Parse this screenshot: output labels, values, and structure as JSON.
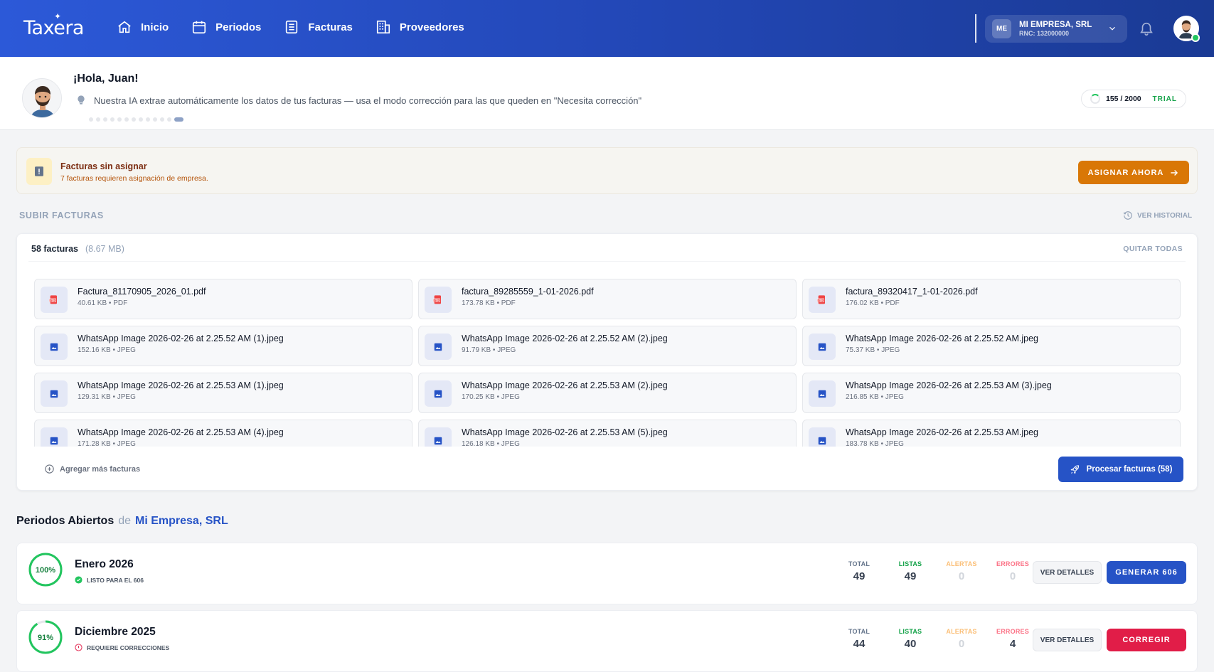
{
  "app": {
    "logo": "Taxera"
  },
  "nav": [
    {
      "label": "Inicio",
      "icon": "home-icon"
    },
    {
      "label": "Periodos",
      "icon": "calendar-icon"
    },
    {
      "label": "Facturas",
      "icon": "document-icon"
    },
    {
      "label": "Proveedores",
      "icon": "building-icon"
    }
  ],
  "company": {
    "initials": "ME",
    "name": "MI EMPRESA, SRL",
    "rnc": "RNC: 132000000"
  },
  "welcome": {
    "greeting": "¡Hola, Juan!",
    "tip": "Nuestra IA extrae automáticamente los datos de tus facturas — usa el modo corrección para las que queden en \"Necesita corrección\""
  },
  "usage": {
    "count": "155 / 2000",
    "plan": "TRIAL",
    "fraction": 0.0775
  },
  "alert": {
    "title": "Facturas sin asignar",
    "subtitle": "7 facturas requieren asignación de empresa.",
    "button": "ASIGNAR AHORA"
  },
  "upload_section": {
    "title": "SUBIR FACTURAS",
    "history": "VER HISTORIAL"
  },
  "upload": {
    "count": "58 facturas",
    "size": "(8.67 MB)",
    "clear": "QUITAR TODAS",
    "add_more": "Agregar más facturas",
    "process": "Procesar facturas (58)",
    "files": [
      {
        "name": "Factura_81170905_2026_01.pdf",
        "meta": "40.61 KB • PDF",
        "type": "pdf"
      },
      {
        "name": "factura_89285559_1-01-2026.pdf",
        "meta": "173.78 KB • PDF",
        "type": "pdf"
      },
      {
        "name": "factura_89320417_1-01-2026.pdf",
        "meta": "176.02 KB • PDF",
        "type": "pdf"
      },
      {
        "name": "WhatsApp Image 2026-02-26 at 2.25.52 AM (1).jpeg",
        "meta": "152.16 KB • JPEG",
        "type": "image"
      },
      {
        "name": "WhatsApp Image 2026-02-26 at 2.25.52 AM (2).jpeg",
        "meta": "91.79 KB • JPEG",
        "type": "image"
      },
      {
        "name": "WhatsApp Image 2026-02-26 at 2.25.52 AM.jpeg",
        "meta": "75.37 KB • JPEG",
        "type": "image"
      },
      {
        "name": "WhatsApp Image 2026-02-26 at 2.25.53 AM (1).jpeg",
        "meta": "129.31 KB • JPEG",
        "type": "image"
      },
      {
        "name": "WhatsApp Image 2026-02-26 at 2.25.53 AM (2).jpeg",
        "meta": "170.25 KB • JPEG",
        "type": "image"
      },
      {
        "name": "WhatsApp Image 2026-02-26 at 2.25.53 AM (3).jpeg",
        "meta": "216.85 KB • JPEG",
        "type": "image"
      },
      {
        "name": "WhatsApp Image 2026-02-26 at 2.25.53 AM (4).jpeg",
        "meta": "171.28 KB • JPEG",
        "type": "image"
      },
      {
        "name": "WhatsApp Image 2026-02-26 at 2.25.53 AM (5).jpeg",
        "meta": "126.18 KB • JPEG",
        "type": "image"
      },
      {
        "name": "WhatsApp Image 2026-02-26 at 2.25.53 AM.jpeg",
        "meta": "183.78 KB • JPEG",
        "type": "image"
      }
    ]
  },
  "periods": {
    "title": "Periodos Abiertos",
    "de": "de",
    "company": "Mi Empresa, SRL",
    "labels": {
      "total": "TOTAL",
      "ready": "LISTAS",
      "alerts": "ALERTAS",
      "errors": "ERRORES",
      "details": "VER DETALLES"
    },
    "items": [
      {
        "name": "Enero 2026",
        "percent": "100%",
        "progress": 1.0,
        "status": "LISTO PARA EL 606",
        "status_kind": "ok",
        "total": "49",
        "ready": "49",
        "alerts": "0",
        "errors": "0",
        "action": "GENERAR 606",
        "action_color": "#2653c6"
      },
      {
        "name": "Diciembre 2025",
        "percent": "91%",
        "progress": 0.91,
        "status": "REQUIERE CORRECCIONES",
        "status_kind": "warn",
        "total": "44",
        "ready": "40",
        "alerts": "0",
        "errors": "4",
        "action": "CORREGIR",
        "action_color": "#e11d48"
      }
    ]
  },
  "colors": {
    "primary": "#2653c6",
    "warning": "#d97706",
    "success": "#16a34a",
    "danger": "#e11d48"
  }
}
